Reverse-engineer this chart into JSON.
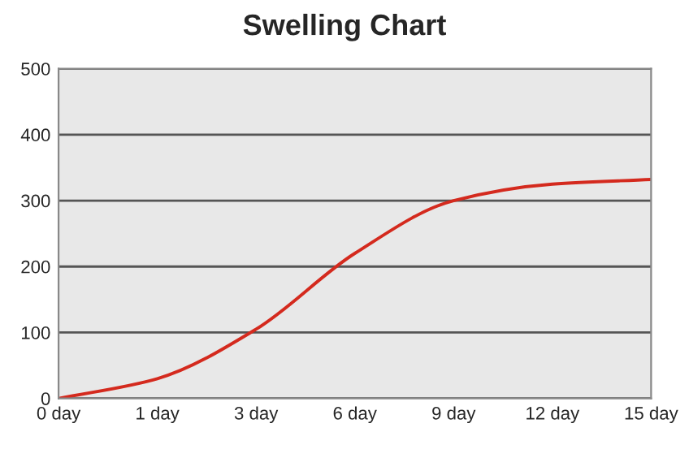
{
  "chart_data": {
    "type": "line",
    "title": "Swelling Chart",
    "categories": [
      "0 day",
      "1 day",
      "3 day",
      "6 day",
      "9 day",
      "12 day",
      "15 day"
    ],
    "series": [
      {
        "color": "#d42a1e",
        "values": [
          0,
          30,
          105,
          220,
          300,
          325,
          332
        ]
      }
    ],
    "ylim": [
      0,
      500
    ],
    "yticks": [
      0,
      100,
      200,
      300,
      400,
      500
    ],
    "grid": "y",
    "marker": "none",
    "line_style": "solid"
  }
}
